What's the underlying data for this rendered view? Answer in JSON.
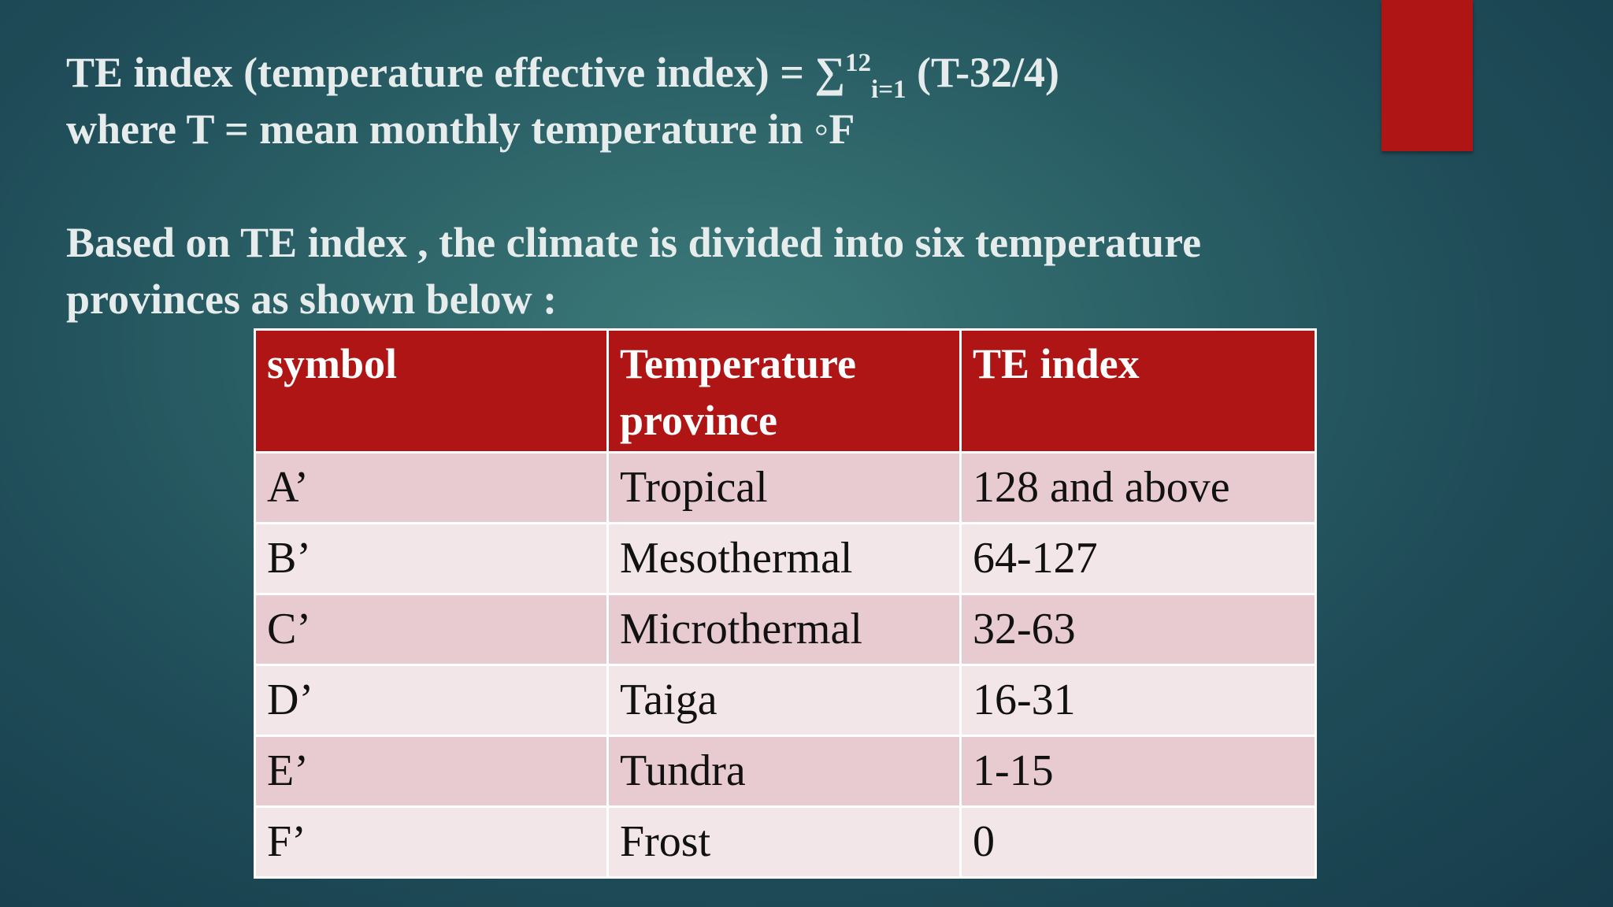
{
  "slide": {
    "formula_lead": "TE index (temperature effective index) = ",
    "sum_symbol": "∑",
    "sum_upper": "12",
    "sum_lower": "i=1",
    "formula_tail": " (T-32/4)",
    "where_line": "where T = mean monthly temperature in ◦F",
    "division_line_1": "Based on TE index , the climate is divided into six temperature",
    "division_line_2": "provinces as shown below :"
  },
  "table": {
    "headers": [
      "symbol",
      "Temperature province",
      "TE index"
    ],
    "rows": [
      [
        "A’",
        "Tropical",
        "128 and above"
      ],
      [
        "B’",
        "Mesothermal",
        "64-127"
      ],
      [
        "C’",
        "Microthermal",
        "32-63"
      ],
      [
        "D’",
        "Taiga",
        "16-31"
      ],
      [
        "E’",
        "Tundra",
        "1-15"
      ],
      [
        "F’",
        "Frost",
        "0"
      ]
    ]
  },
  "colors": {
    "accent_red": "#b01515",
    "row_dark": "#e7cbd0",
    "row_light": "#f3e6e8",
    "background": "#2c6368"
  }
}
